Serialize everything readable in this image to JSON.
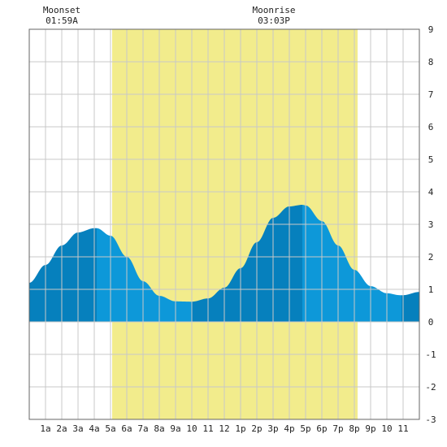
{
  "chart_data": {
    "type": "area",
    "title": "",
    "xlabel": "",
    "ylabel": "",
    "x_tick_labels": [
      "1a",
      "2a",
      "3a",
      "4a",
      "5a",
      "6a",
      "7a",
      "8a",
      "9a",
      "10",
      "11",
      "12",
      "1p",
      "2p",
      "3p",
      "4p",
      "5p",
      "6p",
      "7p",
      "8p",
      "9p",
      "10",
      "11"
    ],
    "x_range_hours": [
      0,
      24
    ],
    "ylim": [
      -3,
      9
    ],
    "y_ticks": [
      -3,
      -2,
      -1,
      0,
      1,
      2,
      3,
      4,
      5,
      6,
      7,
      8,
      9
    ],
    "grid": true,
    "daylight_hours": [
      5.1,
      20.2
    ],
    "tide_series": {
      "name": "",
      "hours": [
        0,
        1,
        2,
        3,
        4,
        4.15,
        5,
        6,
        7,
        8,
        9,
        10,
        10.0,
        11,
        12,
        13,
        14,
        15,
        16,
        16.8,
        17,
        18,
        19,
        20,
        21,
        22,
        22.8,
        23,
        24
      ],
      "heights": [
        1.2,
        1.75,
        2.35,
        2.75,
        2.88,
        2.88,
        2.65,
        2.0,
        1.25,
        0.8,
        0.63,
        0.62,
        0.62,
        0.72,
        1.05,
        1.65,
        2.45,
        3.2,
        3.55,
        3.6,
        3.58,
        3.1,
        2.35,
        1.6,
        1.1,
        0.88,
        0.82,
        0.82,
        0.92
      ]
    },
    "shade_breaks_hours": [
      4.15,
      10.0,
      16.8,
      22.9
    ],
    "annotations": [
      {
        "label": "Moonset",
        "time": "01:59A",
        "hour": 2.0
      },
      {
        "label": "Moonrise",
        "time": "03:03P",
        "hour": 15.05
      }
    ],
    "colors": {
      "daylight": "#f2ec8c",
      "tide_light": "#0d98d9",
      "tide_dark": "#0680bd",
      "grid": "#c8c8c8",
      "axis": "#666666",
      "background": "#ffffff"
    }
  }
}
